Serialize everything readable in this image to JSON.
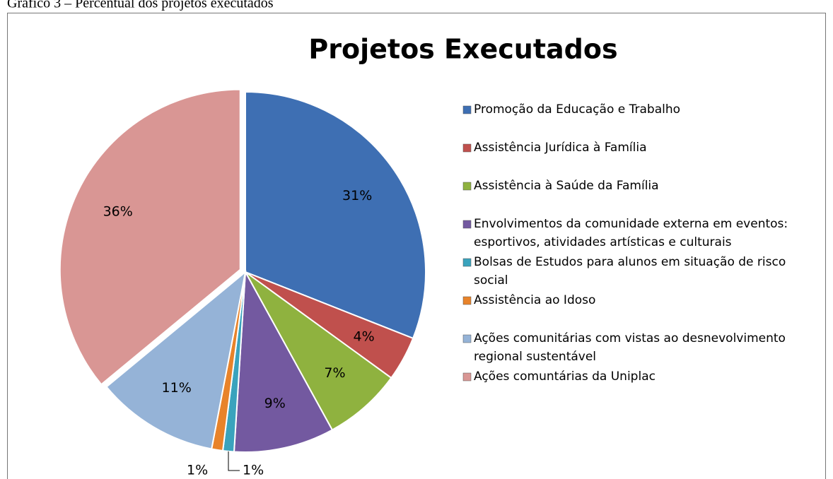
{
  "caption": "Gráfico 3 – Percentual dos projetos executados",
  "chart_data": {
    "type": "pie",
    "title": "Projetos Executados",
    "categories": [
      "Promoção da Educação e Trabalho",
      "Assistência Jurídica à Família",
      "Assistência à Saúde da Família",
      "Envolvimentos da comunidade externa em eventos: esportivos, atividades artísticas e culturais",
      "Bolsas de Estudos para alunos em situação de risco social",
      "Assistência ao Idoso",
      "Ações comunitárias com vistas ao desnevolvimento regional sustentável",
      "Ações comuntárias da Uniplac"
    ],
    "values": [
      31,
      4,
      7,
      9,
      1,
      1,
      11,
      36
    ],
    "value_labels": [
      "31%",
      "4%",
      "7%",
      "9%",
      "1%",
      "1%",
      "11%",
      "36%"
    ],
    "colors": [
      "#3e6fb3",
      "#c0504d",
      "#8fb23f",
      "#7359a0",
      "#3aa3bd",
      "#e8832a",
      "#95b3d7",
      "#d99694"
    ],
    "legend": "right"
  }
}
